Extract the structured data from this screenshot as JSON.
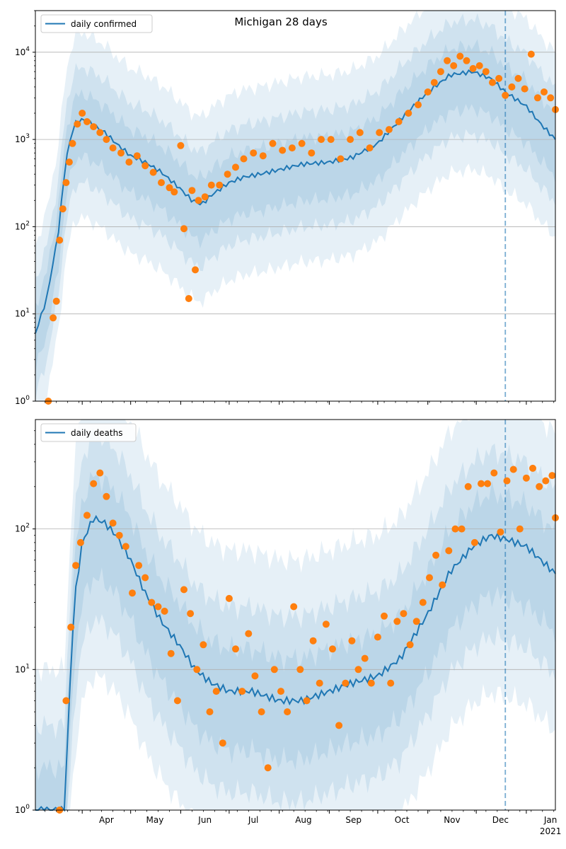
{
  "figure": {
    "title": "Michigan 28 days"
  },
  "chart_data": [
    {
      "type": "line",
      "title": "Michigan 28 days",
      "y_scale": "log",
      "ylim": [
        1,
        30000
      ],
      "xlim": [
        "2020-03-03",
        "2021-01-19"
      ],
      "grid": "horizontal",
      "legend": "top-left",
      "vline_date": "2020-12-19",
      "y_ticks": [
        {
          "value": 1,
          "base": "10",
          "exp": "0"
        },
        {
          "value": 10,
          "base": "10",
          "exp": "1"
        },
        {
          "value": 100,
          "base": "10",
          "exp": "2"
        },
        {
          "value": 1000,
          "base": "10",
          "exp": "3"
        },
        {
          "value": 10000,
          "base": "10",
          "exp": "4"
        }
      ],
      "series": [
        {
          "name": "daily confirmed",
          "color": "#1f77b4",
          "dates": [
            "2020-03-03",
            "2020-03-10",
            "2020-03-17",
            "2020-03-22",
            "2020-03-27",
            "2020-04-01",
            "2020-04-07",
            "2020-04-15",
            "2020-04-22",
            "2020-05-01",
            "2020-05-10",
            "2020-05-20",
            "2020-05-31",
            "2020-06-08",
            "2020-06-14",
            "2020-06-20",
            "2020-07-01",
            "2020-07-10",
            "2020-07-20",
            "2020-08-01",
            "2020-08-15",
            "2020-09-01",
            "2020-09-15",
            "2020-10-01",
            "2020-10-15",
            "2020-11-01",
            "2020-11-15",
            "2020-11-29",
            "2020-12-10",
            "2020-12-19",
            "2021-01-01",
            "2021-01-10",
            "2021-01-19"
          ],
          "values": [
            6,
            15,
            80,
            600,
            1500,
            1700,
            1500,
            1200,
            900,
            650,
            550,
            420,
            280,
            200,
            180,
            230,
            320,
            370,
            400,
            450,
            520,
            550,
            620,
            900,
            1700,
            3500,
            5500,
            6000,
            5000,
            3500,
            2400,
            1500,
            1000
          ]
        }
      ],
      "points": {
        "color": "#ff7f0e",
        "dates": [
          "2020-03-11",
          "2020-03-14",
          "2020-03-16",
          "2020-03-18",
          "2020-03-20",
          "2020-03-22",
          "2020-03-24",
          "2020-03-26",
          "2020-03-29",
          "2020-04-01",
          "2020-04-04",
          "2020-04-08",
          "2020-04-12",
          "2020-04-16",
          "2020-04-20",
          "2020-04-25",
          "2020-04-30",
          "2020-05-05",
          "2020-05-10",
          "2020-05-15",
          "2020-05-20",
          "2020-05-25",
          "2020-05-28",
          "2020-06-01",
          "2020-06-03",
          "2020-06-06",
          "2020-06-08",
          "2020-06-10",
          "2020-06-12",
          "2020-06-16",
          "2020-06-20",
          "2020-06-25",
          "2020-06-30",
          "2020-07-05",
          "2020-07-10",
          "2020-07-16",
          "2020-07-22",
          "2020-07-28",
          "2020-08-03",
          "2020-08-09",
          "2020-08-15",
          "2020-08-21",
          "2020-08-27",
          "2020-09-02",
          "2020-09-08",
          "2020-09-14",
          "2020-09-20",
          "2020-09-26",
          "2020-10-02",
          "2020-10-08",
          "2020-10-14",
          "2020-10-20",
          "2020-10-26",
          "2020-11-01",
          "2020-11-05",
          "2020-11-09",
          "2020-11-13",
          "2020-11-17",
          "2020-11-21",
          "2020-11-25",
          "2020-11-29",
          "2020-12-03",
          "2020-12-07",
          "2020-12-11",
          "2020-12-15",
          "2020-12-19",
          "2020-12-23",
          "2020-12-27",
          "2020-12-31",
          "2021-01-04",
          "2021-01-08",
          "2021-01-12",
          "2021-01-16",
          "2021-01-19"
        ],
        "values": [
          1,
          9,
          14,
          70,
          160,
          320,
          550,
          900,
          1500,
          2000,
          1600,
          1400,
          1200,
          1000,
          800,
          700,
          550,
          650,
          500,
          420,
          320,
          280,
          250,
          850,
          95,
          15,
          260,
          32,
          200,
          220,
          300,
          300,
          400,
          480,
          600,
          700,
          650,
          900,
          750,
          800,
          900,
          700,
          1000,
          1000,
          600,
          1000,
          1200,
          800,
          1200,
          1300,
          1600,
          2000,
          2500,
          3500,
          4500,
          6000,
          8000,
          7000,
          9000,
          8000,
          6500,
          7000,
          6000,
          4500,
          5000,
          3200,
          4000,
          5000,
          3800,
          9500,
          3000,
          3500,
          3000,
          2200
        ]
      }
    },
    {
      "type": "line",
      "y_scale": "log",
      "ylim": [
        1,
        600
      ],
      "xlim": [
        "2020-03-03",
        "2021-01-19"
      ],
      "grid": "horizontal",
      "legend": "top-left",
      "vline_date": "2020-12-19",
      "x_ticks": [
        "Apr",
        "May",
        "Jun",
        "Jul",
        "Aug",
        "Sep",
        "Oct",
        "Nov",
        "Dec",
        "Jan"
      ],
      "x_tick_year": "2021",
      "y_ticks": [
        {
          "value": 1,
          "base": "10",
          "exp": "0"
        },
        {
          "value": 10,
          "base": "10",
          "exp": "1"
        },
        {
          "value": 100,
          "base": "10",
          "exp": "2"
        }
      ],
      "series": [
        {
          "name": "daily deaths",
          "color": "#1f77b4",
          "dates": [
            "2020-03-21",
            "2020-03-24",
            "2020-03-27",
            "2020-04-01",
            "2020-04-08",
            "2020-04-15",
            "2020-04-22",
            "2020-05-01",
            "2020-05-10",
            "2020-05-20",
            "2020-05-31",
            "2020-06-10",
            "2020-06-20",
            "2020-07-01",
            "2020-07-15",
            "2020-08-01",
            "2020-08-15",
            "2020-09-01",
            "2020-09-15",
            "2020-10-01",
            "2020-10-15",
            "2020-11-01",
            "2020-11-15",
            "2020-11-29",
            "2020-12-10",
            "2020-12-19",
            "2021-01-01",
            "2021-01-10",
            "2021-01-19"
          ],
          "values": [
            1,
            6,
            30,
            80,
            120,
            110,
            90,
            60,
            35,
            22,
            15,
            10,
            8,
            7,
            7,
            6,
            6,
            7,
            8,
            9,
            12,
            25,
            50,
            75,
            90,
            85,
            75,
            60,
            48
          ]
        }
      ],
      "points": {
        "color": "#ff7f0e",
        "dates": [
          "2020-03-18",
          "2020-03-22",
          "2020-03-25",
          "2020-03-28",
          "2020-03-31",
          "2020-04-04",
          "2020-04-08",
          "2020-04-12",
          "2020-04-16",
          "2020-04-20",
          "2020-04-24",
          "2020-04-28",
          "2020-05-02",
          "2020-05-06",
          "2020-05-10",
          "2020-05-14",
          "2020-05-18",
          "2020-05-22",
          "2020-05-26",
          "2020-05-30",
          "2020-06-03",
          "2020-06-07",
          "2020-06-11",
          "2020-06-15",
          "2020-06-19",
          "2020-06-23",
          "2020-06-27",
          "2020-07-01",
          "2020-07-05",
          "2020-07-09",
          "2020-07-13",
          "2020-07-17",
          "2020-07-21",
          "2020-07-25",
          "2020-07-29",
          "2020-08-02",
          "2020-08-06",
          "2020-08-10",
          "2020-08-14",
          "2020-08-18",
          "2020-08-22",
          "2020-08-26",
          "2020-08-30",
          "2020-09-03",
          "2020-09-07",
          "2020-09-11",
          "2020-09-15",
          "2020-09-19",
          "2020-09-23",
          "2020-09-27",
          "2020-10-01",
          "2020-10-05",
          "2020-10-09",
          "2020-10-13",
          "2020-10-17",
          "2020-10-21",
          "2020-10-25",
          "2020-10-29",
          "2020-11-02",
          "2020-11-06",
          "2020-11-10",
          "2020-11-14",
          "2020-11-18",
          "2020-11-22",
          "2020-11-26",
          "2020-11-30",
          "2020-12-04",
          "2020-12-08",
          "2020-12-12",
          "2020-12-16",
          "2020-12-20",
          "2020-12-24",
          "2020-12-28",
          "2021-01-01",
          "2021-01-05",
          "2021-01-09",
          "2021-01-13",
          "2021-01-17",
          "2021-01-19"
        ],
        "values": [
          1,
          6,
          20,
          55,
          80,
          125,
          210,
          250,
          170,
          110,
          90,
          75,
          35,
          55,
          45,
          30,
          28,
          26,
          13,
          6,
          37,
          25,
          10,
          15,
          5,
          7,
          3,
          32,
          14,
          7,
          18,
          9,
          5,
          2,
          10,
          7,
          5,
          28,
          10,
          6,
          16,
          8,
          21,
          14,
          4,
          8,
          16,
          10,
          12,
          8,
          17,
          24,
          8,
          22,
          25,
          15,
          22,
          30,
          45,
          65,
          40,
          70,
          100,
          100,
          200,
          80,
          210,
          210,
          250,
          95,
          220,
          265,
          100,
          230,
          270,
          200,
          220,
          240,
          120
        ]
      }
    }
  ]
}
